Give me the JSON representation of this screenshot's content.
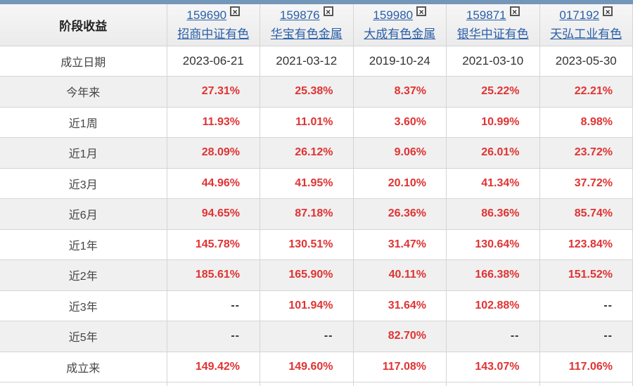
{
  "table": {
    "corner_label": "阶段收益",
    "close_glyph": "×",
    "funds": [
      {
        "code": "159690",
        "name": "招商中证有色"
      },
      {
        "code": "159876",
        "name": "华宝有色金属"
      },
      {
        "code": "159980",
        "name": "大成有色金属"
      },
      {
        "code": "159871",
        "name": "银华中证有色"
      },
      {
        "code": "017192",
        "name": "天弘工业有色"
      }
    ],
    "rows": [
      {
        "label": "成立日期",
        "type": "date",
        "values": [
          "2023-06-21",
          "2021-03-12",
          "2019-10-24",
          "2021-03-10",
          "2023-05-30"
        ]
      },
      {
        "label": "今年来",
        "type": "pct",
        "values": [
          "27.31%",
          "25.38%",
          "8.37%",
          "25.22%",
          "22.21%"
        ]
      },
      {
        "label": "近1周",
        "type": "pct",
        "values": [
          "11.93%",
          "11.01%",
          "3.60%",
          "10.99%",
          "8.98%"
        ]
      },
      {
        "label": "近1月",
        "type": "pct",
        "values": [
          "28.09%",
          "26.12%",
          "9.06%",
          "26.01%",
          "23.72%"
        ]
      },
      {
        "label": "近3月",
        "type": "pct",
        "values": [
          "44.96%",
          "41.95%",
          "20.10%",
          "41.34%",
          "37.72%"
        ]
      },
      {
        "label": "近6月",
        "type": "pct",
        "values": [
          "94.65%",
          "87.18%",
          "26.36%",
          "86.36%",
          "85.74%"
        ]
      },
      {
        "label": "近1年",
        "type": "pct",
        "values": [
          "145.78%",
          "130.51%",
          "31.47%",
          "130.64%",
          "123.84%"
        ]
      },
      {
        "label": "近2年",
        "type": "pct",
        "values": [
          "185.61%",
          "165.90%",
          "40.11%",
          "166.38%",
          "151.52%"
        ]
      },
      {
        "label": "近3年",
        "type": "pct",
        "values": [
          "--",
          "101.94%",
          "31.64%",
          "102.88%",
          "--"
        ]
      },
      {
        "label": "近5年",
        "type": "pct",
        "values": [
          "--",
          "--",
          "82.70%",
          "--",
          "--"
        ]
      },
      {
        "label": "成立来",
        "type": "pct",
        "values": [
          "149.42%",
          "149.60%",
          "117.08%",
          "143.07%",
          "117.06%"
        ]
      }
    ],
    "colors": {
      "top_bar": "#7496b9",
      "positive_value": "#e03333",
      "missing_value": "#333333",
      "link": "#2a5fa8",
      "alt_row_bg": "#f0f0f0",
      "border": "#d5d5d5"
    }
  }
}
